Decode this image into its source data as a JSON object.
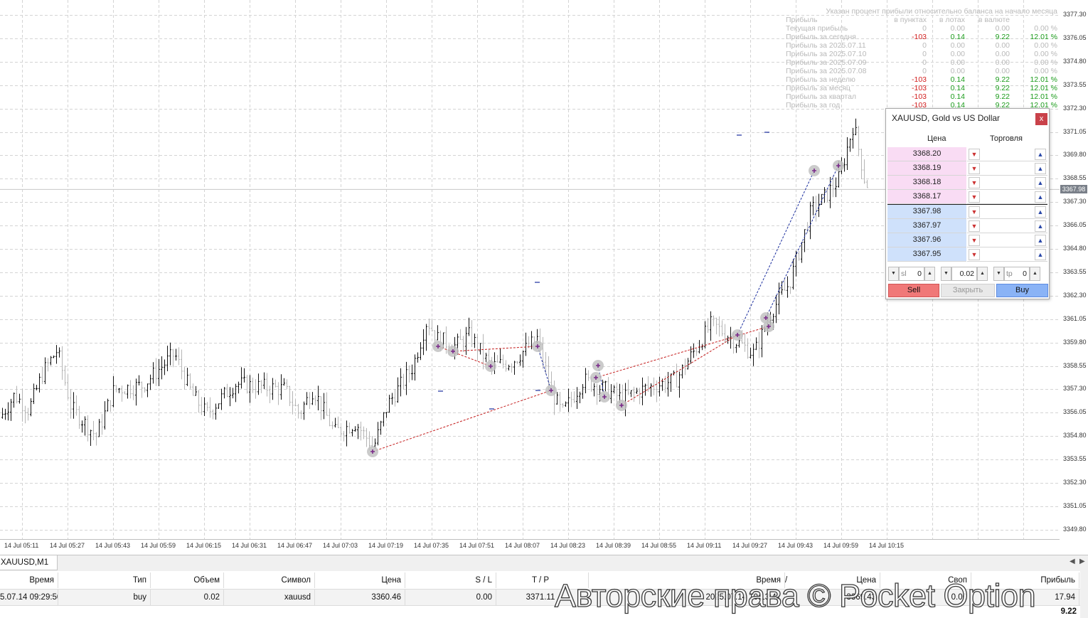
{
  "chart": {
    "symbol_tab": "XAUUSD,M1",
    "current_price": "3367.98",
    "price_ticks": [
      "3377.30",
      "3376.05",
      "3374.80",
      "3373.55",
      "3372.30",
      "3371.05",
      "3369.80",
      "3368.55",
      "3367.30",
      "3366.05",
      "3364.80",
      "3363.55",
      "3362.30",
      "3361.05",
      "3359.80",
      "3358.55",
      "3357.30",
      "3356.05",
      "3354.80",
      "3353.55",
      "3352.30",
      "3351.05",
      "3349.80"
    ],
    "time_ticks": [
      "14 Jul 05:11",
      "14 Jul 05:27",
      "14 Jul 05:43",
      "14 Jul 05:59",
      "14 Jul 06:15",
      "14 Jul 06:31",
      "14 Jul 06:47",
      "14 Jul 07:03",
      "14 Jul 07:19",
      "14 Jul 07:35",
      "14 Jul 07:51",
      "14 Jul 08:07",
      "14 Jul 08:23",
      "14 Jul 08:39",
      "14 Jul 08:55",
      "14 Jul 09:11",
      "14 Jul 09:27",
      "14 Jul 09:43",
      "14 Jul 09:59",
      "14 Jul 10:15"
    ],
    "y_range": [
      3349.3,
      3378.1
    ],
    "colors": {
      "bull": "#111111",
      "bear": "#b5b5b5",
      "grid": "#d4d4d4",
      "buy_line": "#1a2d9e",
      "sell_line": "#c41b1b"
    }
  },
  "stats": {
    "note": "Указан процент прибыли относительно баланса на начало месяца",
    "headers": [
      "Прибыль",
      "в пунктах",
      "в лотах",
      "в валюте",
      ""
    ],
    "rows": [
      [
        "Текущая прибыль",
        "0",
        "0.00",
        "0.00",
        "0.00 %"
      ],
      [
        "Прибыль за сегодня",
        "-103",
        "0.14",
        "9.22",
        "12.01 %"
      ],
      [
        "Прибыль за 2025.07.11",
        "0",
        "0.00",
        "0.00",
        "0.00 %"
      ],
      [
        "Прибыль за 2025.07.10",
        "0",
        "0.00",
        "0.00",
        "0.00 %"
      ],
      [
        "Прибыль за 2025.07.09",
        "0",
        "0.00",
        "0.00",
        "0.00 %"
      ],
      [
        "Прибыль за 2025.07.08",
        "0",
        "0.00",
        "0.00",
        "0.00 %"
      ],
      [
        "Прибыль за неделю",
        "-103",
        "0.14",
        "9.22",
        "12.01 %"
      ],
      [
        "Прибыль за месяц",
        "-103",
        "0.14",
        "9.22",
        "12.01 %"
      ],
      [
        "Прибыль за квартал",
        "-103",
        "0.14",
        "9.22",
        "12.01 %"
      ],
      [
        "Прибыль за год",
        "-103",
        "0.14",
        "9.22",
        "12.01 %"
      ]
    ]
  },
  "panel": {
    "title": "XAUUSD, Gold vs US Dollar",
    "close_label": "x",
    "col_price": "Цена",
    "col_trade": "Торговля",
    "asks": [
      "3368.20",
      "3368.19",
      "3368.18",
      "3368.17"
    ],
    "bids": [
      "3367.98",
      "3367.97",
      "3367.96",
      "3367.95"
    ],
    "sl_label": "sl",
    "sl_value": "0",
    "lot_value": "0.02",
    "tp_label": "tp",
    "tp_value": "0",
    "sell_label": "Sell",
    "close_trade_label": "Закрыть",
    "buy_label": "Buy"
  },
  "trades_table": {
    "headers": [
      "Время",
      "Тип",
      "Объем",
      "Символ",
      "Цена",
      "S / L",
      "T / P",
      "Время",
      "/",
      "Цена",
      "Своп",
      "Прибыль"
    ],
    "row": [
      "5.07.14 09:29:50",
      "buy",
      "0.02",
      "xauusd",
      "3360.46",
      "0.00",
      "3371.11",
      "2025.07.14 10:13:41",
      "",
      "3369.43",
      "0.00",
      "17.94"
    ],
    "total": "9.22"
  },
  "watermark": "Авторские права © Pocket Option"
}
